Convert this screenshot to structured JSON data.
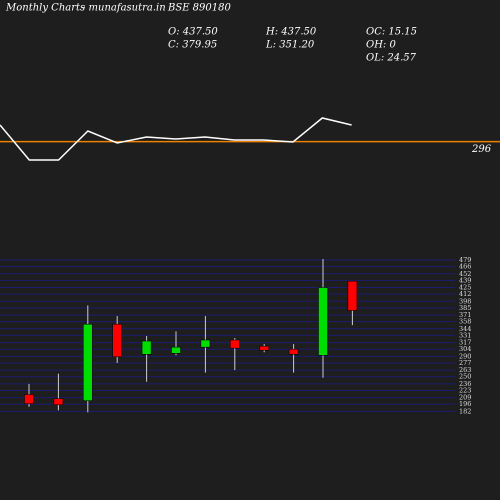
{
  "header": {
    "site": "Monthly Charts",
    "source": "- munafasutra.in",
    "symbol": "BSE 890180",
    "open": "O: 437.50",
    "high": "H: 437.50",
    "oc": "OC: 15.15",
    "close": "C: 379.95",
    "low": "L: 351.20",
    "oh": "OH: 0",
    "ol": "OL: 24.57"
  },
  "chart_data": [
    {
      "type": "line",
      "color": "#ffffff",
      "x": [
        0,
        1,
        2,
        3,
        4,
        5,
        6,
        7,
        8,
        9,
        10,
        11,
        12
      ],
      "values": [
        337.5,
        250,
        250,
        322.5,
        292.5,
        307.5,
        302.5,
        307.5,
        300,
        300,
        295,
        355,
        337.5
      ],
      "reference_line": 296,
      "reference_color": "#f08000",
      "ylim": [
        200,
        400
      ]
    },
    {
      "type": "candlestick",
      "up_color": "#00dd00",
      "down_color": "#ff0000",
      "grid_color": "#1c1c70",
      "open": [
        215,
        207,
        203,
        353,
        294,
        296,
        308,
        322,
        310,
        304,
        292,
        437.5
      ],
      "high": [
        236,
        256,
        390,
        369,
        330,
        339,
        369,
        326,
        314,
        314,
        481,
        437.5
      ],
      "low": [
        191,
        184,
        180,
        277,
        240,
        292,
        258,
        263,
        298,
        258,
        248,
        351.2
      ],
      "close": [
        197,
        195,
        353,
        289,
        320,
        308,
        322,
        306,
        302,
        294,
        425,
        379.95
      ],
      "ylim": [
        165,
        483
      ],
      "yticks": [
        479,
        466,
        452,
        439,
        425,
        412,
        398,
        385,
        371,
        358,
        344,
        331,
        317,
        304,
        290,
        277,
        263,
        250,
        236,
        223,
        209,
        196,
        182
      ]
    }
  ]
}
